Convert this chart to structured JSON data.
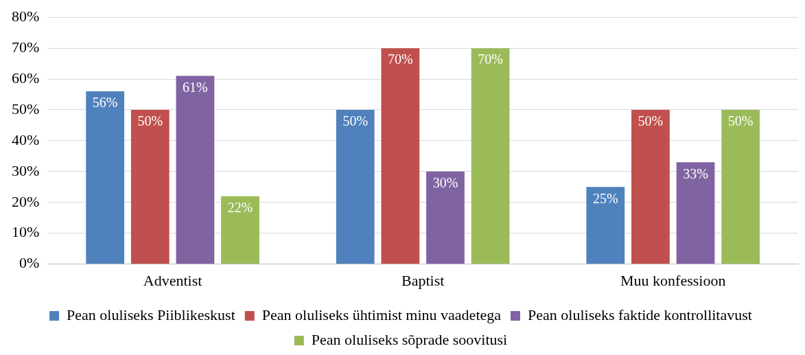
{
  "chart_data": {
    "type": "bar",
    "categories": [
      "Adventist",
      "Baptist",
      "Muu konfessioon"
    ],
    "series": [
      {
        "name": "Pean oluliseks Piiblikeskust",
        "color": "#4f81bd",
        "values": [
          56,
          50,
          25
        ],
        "value_labels": [
          "56%",
          "50%",
          "25%"
        ]
      },
      {
        "name": "Pean oluliseks ühtimist minu vaadetega",
        "color": "#c0504d",
        "values": [
          50,
          70,
          50
        ],
        "value_labels": [
          "50%",
          "70%",
          "50%"
        ]
      },
      {
        "name": "Pean oluliseks faktide kontrollitavust",
        "color": "#8064a2",
        "values": [
          61,
          30,
          33
        ],
        "value_labels": [
          "61%",
          "30%",
          "33%"
        ]
      },
      {
        "name": "Pean oluliseks sõprade soovitusi",
        "color": "#9bbb59",
        "values": [
          22,
          70,
          50
        ],
        "value_labels": [
          "22%",
          "70%",
          "50%"
        ]
      }
    ],
    "ylim": [
      0,
      80
    ],
    "yticks": [
      {
        "value": 0,
        "label": "0%"
      },
      {
        "value": 10,
        "label": "10%"
      },
      {
        "value": 20,
        "label": "20%"
      },
      {
        "value": 30,
        "label": "30%"
      },
      {
        "value": 40,
        "label": "40%"
      },
      {
        "value": 50,
        "label": "50%"
      },
      {
        "value": 60,
        "label": "60%"
      },
      {
        "value": 70,
        "label": "70%"
      },
      {
        "value": 80,
        "label": "80%"
      }
    ],
    "grid": "y",
    "legend": "bottom"
  }
}
